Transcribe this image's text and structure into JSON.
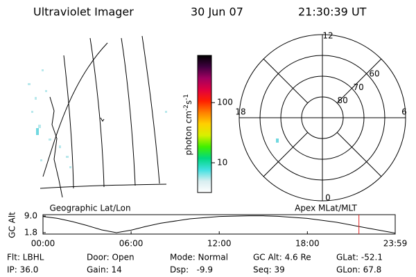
{
  "header": {
    "title": "Ultraviolet Imager",
    "date": "30 Jun 07",
    "time": "21:30:39 UT"
  },
  "image_panel": {
    "label": "Geographic Lat/Lon"
  },
  "colorbar": {
    "label_base": "photon cm",
    "label_exp1": "-2",
    "label_unit2": "s",
    "label_exp2": "-1",
    "log": true,
    "clim": [
      3.2,
      610
    ],
    "ticks": [
      10,
      100
    ],
    "colors": [
      "#ffffff",
      "#d8eef0",
      "#40e0e0",
      "#00d880",
      "#40f000",
      "#d8f000",
      "#ffd000",
      "#ff8000",
      "#ff2000",
      "#e00040",
      "#a00060",
      "#400040",
      "#000000"
    ]
  },
  "polar_plot": {
    "label": "Apex MLat/MLT",
    "rlim": [
      90,
      50
    ],
    "lat_rings": [
      80,
      70,
      60
    ],
    "mlt_labels": [
      12,
      18,
      6,
      0
    ]
  },
  "altitude_plot": {
    "ylabel": "GC Alt",
    "x": [
      0,
      1,
      2,
      3,
      4,
      5,
      6,
      7,
      8,
      10,
      12,
      14,
      15,
      16,
      18,
      20,
      22,
      23.98
    ],
    "values": [
      8.8,
      8.0,
      6.6,
      4.9,
      3.0,
      1.8,
      2.9,
      4.5,
      5.9,
      7.8,
      8.8,
      9.1,
      9.1,
      8.9,
      8.0,
      6.3,
      3.9,
      1.6
    ],
    "xlim": [
      0,
      23.98
    ],
    "ylim": [
      1.2,
      9.6
    ],
    "yticks": [
      9.0,
      1.8
    ],
    "ytick_labels": [
      "9.0",
      "1.8"
    ],
    "xticks": [
      {
        "value": 0,
        "label": "00:00"
      },
      {
        "value": 6,
        "label": "06:00"
      },
      {
        "value": 12,
        "label": "12:00"
      },
      {
        "value": 18,
        "label": "18:00"
      },
      {
        "value": 23.98,
        "label": "23:59"
      }
    ],
    "marker_x": 21.51,
    "marker_color": "#e02020"
  },
  "status": [
    [
      "Flt: LBHL",
      "Door: Open",
      "Mode: Normal",
      "GC Alt: 4.6 Re",
      "GLat: -52.1"
    ],
    [
      "IP: 36.0",
      "Gain: 14",
      "Dsp:   -9.9",
      "Seq: 39",
      "GLon: 67.8"
    ]
  ]
}
